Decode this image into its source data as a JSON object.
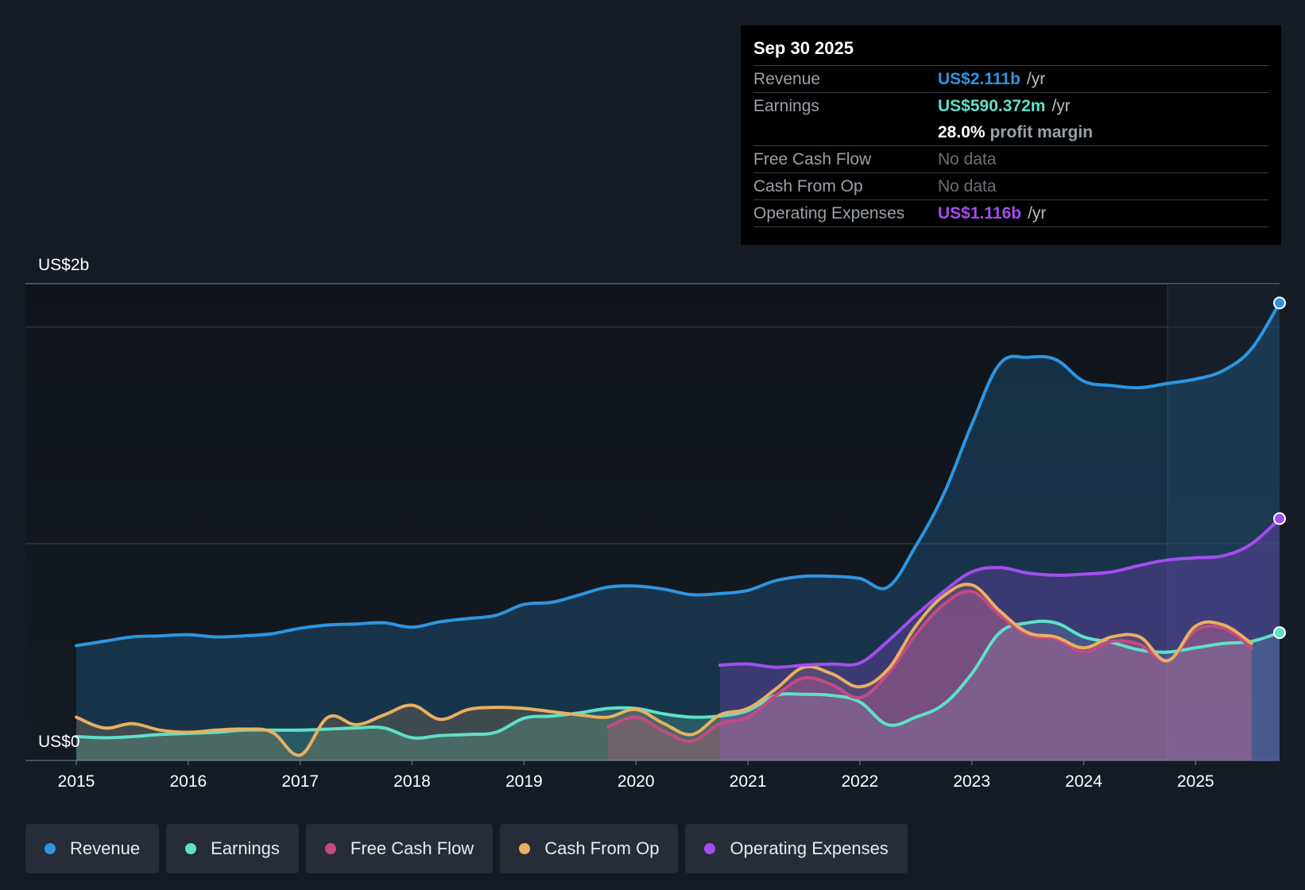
{
  "chart_data": {
    "type": "line",
    "title": "",
    "ylabel_top": "US$2b",
    "ylabel_bottom": "US$0",
    "ylim": [
      0,
      2.2
    ],
    "xlim": [
      2015,
      2025.75
    ],
    "x_ticks": [
      "2015",
      "2016",
      "2017",
      "2018",
      "2019",
      "2020",
      "2021",
      "2022",
      "2023",
      "2024",
      "2025"
    ],
    "series": [
      {
        "name": "Revenue",
        "color": "#2e95e0",
        "x": [
          2015,
          2015.25,
          2015.5,
          2015.75,
          2016,
          2016.25,
          2016.5,
          2016.75,
          2017,
          2017.25,
          2017.5,
          2017.75,
          2018,
          2018.25,
          2018.5,
          2018.75,
          2019,
          2019.25,
          2019.5,
          2019.75,
          2020,
          2020.25,
          2020.5,
          2020.75,
          2021,
          2021.25,
          2021.5,
          2021.75,
          2022,
          2022.25,
          2022.5,
          2022.75,
          2023,
          2023.25,
          2023.5,
          2023.75,
          2024,
          2024.25,
          2024.5,
          2024.75,
          2025,
          2025.25,
          2025.5,
          2025.75
        ],
        "values": [
          0.53,
          0.55,
          0.57,
          0.575,
          0.58,
          0.57,
          0.575,
          0.585,
          0.61,
          0.625,
          0.63,
          0.635,
          0.615,
          0.64,
          0.655,
          0.67,
          0.72,
          0.73,
          0.765,
          0.8,
          0.805,
          0.79,
          0.765,
          0.77,
          0.785,
          0.83,
          0.85,
          0.85,
          0.84,
          0.8,
          0.99,
          1.23,
          1.55,
          1.83,
          1.86,
          1.85,
          1.75,
          1.73,
          1.72,
          1.74,
          1.76,
          1.8,
          1.9,
          2.111
        ]
      },
      {
        "name": "Earnings",
        "color": "#5ee0c9",
        "x": [
          2015,
          2015.25,
          2015.5,
          2015.75,
          2016,
          2016.25,
          2016.5,
          2016.75,
          2017,
          2017.25,
          2017.5,
          2017.75,
          2018,
          2018.25,
          2018.5,
          2018.75,
          2019,
          2019.25,
          2019.5,
          2019.75,
          2020,
          2020.25,
          2020.5,
          2020.75,
          2021,
          2021.25,
          2021.5,
          2021.75,
          2022,
          2022.25,
          2022.5,
          2022.75,
          2023,
          2023.25,
          2023.5,
          2023.75,
          2024,
          2024.25,
          2024.5,
          2024.75,
          2025,
          2025.25,
          2025.5,
          2025.75
        ],
        "values": [
          0.11,
          0.105,
          0.11,
          0.12,
          0.125,
          0.13,
          0.14,
          0.14,
          0.14,
          0.145,
          0.15,
          0.15,
          0.105,
          0.115,
          0.12,
          0.13,
          0.195,
          0.205,
          0.22,
          0.24,
          0.24,
          0.215,
          0.2,
          0.205,
          0.23,
          0.3,
          0.305,
          0.3,
          0.27,
          0.165,
          0.2,
          0.26,
          0.4,
          0.59,
          0.635,
          0.635,
          0.57,
          0.545,
          0.51,
          0.5,
          0.52,
          0.54,
          0.55,
          0.59
        ]
      },
      {
        "name": "Free Cash Flow",
        "color": "#c44a84",
        "x": [
          2019.75,
          2020,
          2020.25,
          2020.5,
          2020.75,
          2021,
          2021.25,
          2021.5,
          2021.75,
          2022,
          2022.25,
          2022.5,
          2022.75,
          2023,
          2023.25,
          2023.5,
          2023.75,
          2024,
          2024.25,
          2024.5,
          2024.75,
          2025,
          2025.25,
          2025.5
        ],
        "values": [
          0.155,
          0.2,
          0.135,
          0.09,
          0.17,
          0.2,
          0.3,
          0.38,
          0.35,
          0.29,
          0.4,
          0.58,
          0.72,
          0.78,
          0.67,
          0.58,
          0.56,
          0.5,
          0.55,
          0.535,
          0.46,
          0.6,
          0.61,
          0.52
        ]
      },
      {
        "name": "Cash From Op",
        "color": "#e8b060",
        "x": [
          2015,
          2015.25,
          2015.5,
          2015.75,
          2016,
          2016.25,
          2016.5,
          2016.75,
          2017,
          2017.25,
          2017.5,
          2017.75,
          2018,
          2018.25,
          2018.5,
          2018.75,
          2019,
          2019.25,
          2019.5,
          2019.75,
          2020,
          2020.25,
          2020.5,
          2020.75,
          2021,
          2021.25,
          2021.5,
          2021.75,
          2022,
          2022.25,
          2022.5,
          2022.75,
          2023,
          2023.25,
          2023.5,
          2023.75,
          2024,
          2024.25,
          2024.5,
          2024.75,
          2025,
          2025.25,
          2025.5
        ],
        "values": [
          0.2,
          0.15,
          0.17,
          0.14,
          0.13,
          0.14,
          0.145,
          0.13,
          0.025,
          0.2,
          0.165,
          0.21,
          0.255,
          0.19,
          0.235,
          0.245,
          0.24,
          0.225,
          0.21,
          0.2,
          0.235,
          0.17,
          0.12,
          0.21,
          0.24,
          0.33,
          0.43,
          0.4,
          0.34,
          0.42,
          0.62,
          0.76,
          0.81,
          0.69,
          0.59,
          0.57,
          0.52,
          0.57,
          0.57,
          0.46,
          0.62,
          0.625,
          0.54
        ]
      },
      {
        "name": "Operating Expenses",
        "color": "#a44df0",
        "x": [
          2020.75,
          2021,
          2021.25,
          2021.5,
          2021.75,
          2022,
          2022.25,
          2022.5,
          2022.75,
          2023,
          2023.25,
          2023.5,
          2023.75,
          2024,
          2024.25,
          2024.5,
          2024.75,
          2025,
          2025.25,
          2025.5,
          2025.75
        ],
        "values": [
          0.44,
          0.445,
          0.43,
          0.44,
          0.445,
          0.45,
          0.55,
          0.67,
          0.78,
          0.87,
          0.89,
          0.865,
          0.855,
          0.86,
          0.87,
          0.9,
          0.925,
          0.935,
          0.945,
          1.0,
          1.116
        ]
      }
    ],
    "forecast_shade_from": 2024.75
  },
  "tooltip": {
    "date": "Sep 30 2025",
    "revenue_label": "Revenue",
    "revenue_value": "US$2.111b",
    "revenue_unit": "/yr",
    "earnings_label": "Earnings",
    "earnings_value": "US$590.372m",
    "earnings_unit": "/yr",
    "margin_value": "28.0%",
    "margin_text": "profit margin",
    "fcf_label": "Free Cash Flow",
    "fcf_value": "No data",
    "cfo_label": "Cash From Op",
    "cfo_value": "No data",
    "opex_label": "Operating Expenses",
    "opex_value": "US$1.116b",
    "opex_unit": "/yr",
    "colors": {
      "revenue": "#2e95e0",
      "earnings": "#5ee0c9",
      "opex": "#a44df0"
    }
  },
  "legend": [
    {
      "label": "Revenue",
      "color": "#2e95e0"
    },
    {
      "label": "Earnings",
      "color": "#5ee0c9"
    },
    {
      "label": "Free Cash Flow",
      "color": "#c44a84"
    },
    {
      "label": "Cash From Op",
      "color": "#e8b060"
    },
    {
      "label": "Operating Expenses",
      "color": "#a44df0"
    }
  ]
}
